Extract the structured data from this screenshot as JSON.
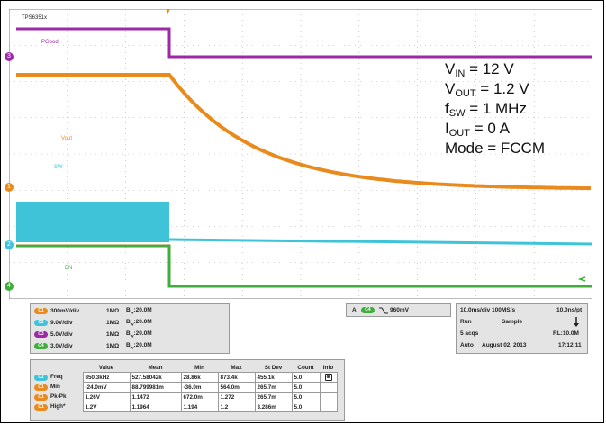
{
  "scope": {
    "model": "TPS6351x",
    "labels": {
      "pgood": "PGood",
      "vout": "Vout",
      "sw": "SW",
      "en": "EN"
    },
    "markers": {
      "ch3": "3",
      "ch1": "1",
      "ch2": "2",
      "ch4": "4"
    },
    "colors": {
      "ch1": "#ea8a1d",
      "ch2": "#3ec3d9",
      "ch3": "#9c2aa6",
      "ch4": "#3fae3a",
      "grid": "#aaaaaa"
    }
  },
  "annotation": {
    "vin_sym": "V",
    "vin_sub": "IN",
    "vin_val": " = 12 V",
    "vout_sym": "V",
    "vout_sub": "OUT",
    "vout_val": " = 1.2 V",
    "fsw_sym": "f",
    "fsw_sub": "SW",
    "fsw_val": " = 1 MHz",
    "iout_sym": "I",
    "iout_sub": "OUT",
    "iout_val": " = 0 A",
    "mode": "Mode = FCCM"
  },
  "channels": [
    {
      "badge": "C1",
      "scale": "300mV/div",
      "impedance": "1MΩ",
      "bw": "B",
      "bw_sub": "W",
      "bw_val": ":20.0M",
      "color": "#ea8a1d"
    },
    {
      "badge": "C2",
      "scale": "9.0V/div",
      "impedance": "1MΩ",
      "bw": "B",
      "bw_sub": "W",
      "bw_val": ":20.0M",
      "color": "#3ec3d9"
    },
    {
      "badge": "C3",
      "scale": "5.0V/div",
      "impedance": "1MΩ",
      "bw": "B",
      "bw_sub": "W",
      "bw_val": ":20.0M",
      "color": "#9c2aa6"
    },
    {
      "badge": "C4",
      "scale": "3.0V/div",
      "impedance": "1MΩ",
      "bw": "B",
      "bw_sub": "W",
      "bw_val": ":20.0M",
      "color": "#3fae3a"
    }
  ],
  "trigger": {
    "label": "A'",
    "badge": "C4",
    "level": "960mV"
  },
  "timebase": {
    "horiz": "10.0ms/div 100MS/s",
    "resolution": "10.0ns/pt",
    "run": "Run",
    "mode": "Sample",
    "acqs": "5 acqs",
    "rl": "RL:10.0M",
    "auto": "Auto",
    "date": "August 02, 2013",
    "time": "17:12:11"
  },
  "measurements": {
    "headers": [
      "Value",
      "Mean",
      "Min",
      "Max",
      "St Dev",
      "Count",
      "Info"
    ],
    "rows": [
      {
        "badge": "C2",
        "name": "Freq",
        "value": "850.3kHz",
        "mean": "527.58042k",
        "min": "28.86k",
        "max": "873.4k",
        "stdev": "455.1k",
        "count": "5.0"
      },
      {
        "badge": "C1",
        "name": "Min",
        "value": "-24.0mV",
        "mean": "88.799981m",
        "min": "-36.0m",
        "max": "564.0m",
        "stdev": "265.7m",
        "count": "5.0"
      },
      {
        "badge": "C1",
        "name": "Pk-Pk",
        "value": "1.26V",
        "mean": "1.1472",
        "min": "672.0m",
        "max": "1.272",
        "stdev": "265.7m",
        "count": "5.0"
      },
      {
        "badge": "C1",
        "name": "High*",
        "value": "1.2V",
        "mean": "1.1964",
        "min": "1.194",
        "max": "1.2",
        "stdev": "3.286m",
        "count": "5.0"
      }
    ]
  }
}
